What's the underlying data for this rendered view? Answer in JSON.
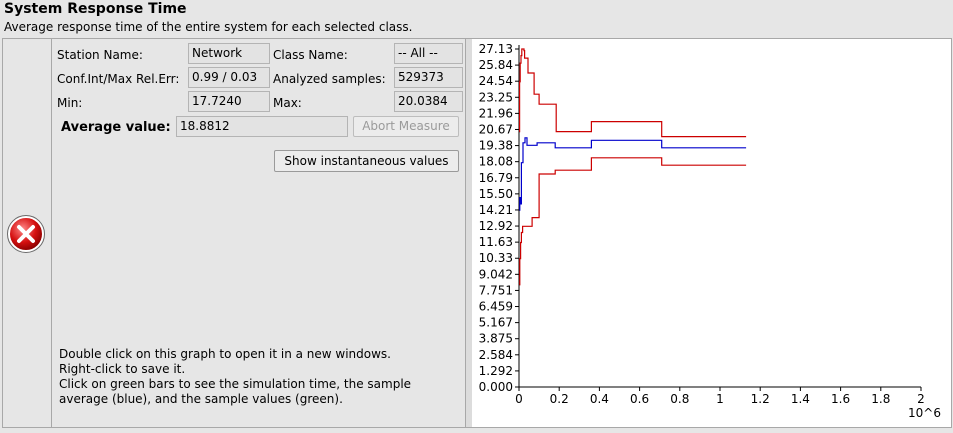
{
  "header": {
    "title": "System Response Time",
    "subtitle": "Average response time of the entire system for each selected class."
  },
  "status_icon": "error-x-icon",
  "fields": {
    "station_name_label": "Station Name:",
    "station_name_value": "Network",
    "class_name_label": "Class Name:",
    "class_name_value": "-- All --",
    "conf_label": "Conf.Int/Max Rel.Err:",
    "conf_value": "0.99 / 0.03",
    "analyzed_label": "Analyzed samples:",
    "analyzed_value": "529373",
    "min_label": "Min:",
    "min_value": "17.7240",
    "max_label": "Max:",
    "max_value": "20.0384",
    "average_label": "Average value:",
    "average_value": "18.8812"
  },
  "buttons": {
    "abort": "Abort Measure",
    "show_instant": "Show instantaneous values"
  },
  "help_lines": [
    "Double click on this graph to open it in a new windows.",
    "Right-click to save it.",
    "Click on green bars to see the simulation time, the sample",
    "average (blue), and the sample values (green)."
  ],
  "colors": {
    "mean": "#0000cc",
    "bounds": "#cc0000"
  },
  "chart_data": {
    "type": "line",
    "x_multiplier_label": "10^6",
    "xlim": [
      0,
      2
    ],
    "ylim": [
      0,
      27.13
    ],
    "x_ticks": [
      "0",
      "0.2",
      "0.4",
      "0.6",
      "0.8",
      "1",
      "1.2",
      "1.4",
      "1.6",
      "1.8",
      "2"
    ],
    "y_ticks": [
      "0.000",
      "1.292",
      "2.584",
      "3.875",
      "5.167",
      "6.459",
      "7.751",
      "9.042",
      "10.33",
      "11.63",
      "12.92",
      "14.21",
      "15.50",
      "16.79",
      "18.08",
      "19.38",
      "20.67",
      "21.96",
      "23.25",
      "24.54",
      "25.84",
      "27.13"
    ],
    "series": [
      {
        "role": "upper",
        "color": "#cc0000",
        "points": [
          [
            0.002,
            20.5
          ],
          [
            0.003,
            24.5
          ],
          [
            0.006,
            26.0
          ],
          [
            0.01,
            26.6
          ],
          [
            0.014,
            27.13
          ],
          [
            0.025,
            27.0
          ],
          [
            0.028,
            26.4
          ],
          [
            0.04,
            26.4
          ],
          [
            0.045,
            25.2
          ],
          [
            0.07,
            25.2
          ],
          [
            0.075,
            23.5
          ],
          [
            0.09,
            23.5
          ],
          [
            0.1,
            22.7
          ],
          [
            0.17,
            22.7
          ],
          [
            0.185,
            20.5
          ],
          [
            0.35,
            20.5
          ],
          [
            0.36,
            21.3
          ],
          [
            0.7,
            21.3
          ],
          [
            0.71,
            20.1
          ],
          [
            1.13,
            20.1
          ]
        ]
      },
      {
        "role": "mean",
        "color": "#0000cc",
        "points": [
          [
            0.002,
            14.2
          ],
          [
            0.004,
            15.2
          ],
          [
            0.008,
            14.7
          ],
          [
            0.012,
            18.0
          ],
          [
            0.02,
            19.6
          ],
          [
            0.03,
            20.0
          ],
          [
            0.04,
            19.4
          ],
          [
            0.08,
            19.4
          ],
          [
            0.09,
            19.6
          ],
          [
            0.17,
            19.6
          ],
          [
            0.18,
            19.2
          ],
          [
            0.35,
            19.2
          ],
          [
            0.36,
            19.8
          ],
          [
            0.7,
            19.8
          ],
          [
            0.71,
            19.2
          ],
          [
            1.13,
            19.2
          ]
        ]
      },
      {
        "role": "lower",
        "color": "#cc0000",
        "points": [
          [
            0.002,
            8.2
          ],
          [
            0.004,
            10.3
          ],
          [
            0.008,
            11.6
          ],
          [
            0.012,
            12.4
          ],
          [
            0.018,
            12.9
          ],
          [
            0.06,
            12.9
          ],
          [
            0.065,
            13.6
          ],
          [
            0.09,
            13.6
          ],
          [
            0.1,
            17.1
          ],
          [
            0.17,
            17.1
          ],
          [
            0.18,
            17.4
          ],
          [
            0.35,
            17.4
          ],
          [
            0.36,
            18.4
          ],
          [
            0.7,
            18.4
          ],
          [
            0.71,
            17.8
          ],
          [
            1.13,
            17.8
          ]
        ]
      }
    ]
  }
}
